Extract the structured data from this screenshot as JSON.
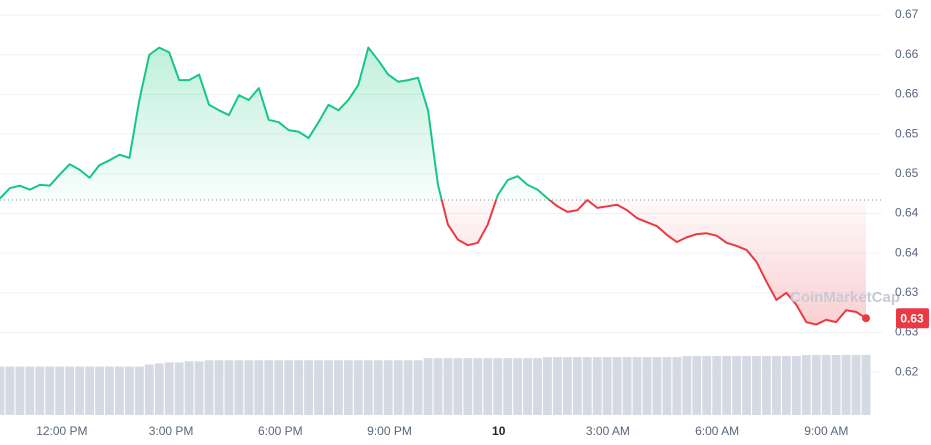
{
  "chart_data": {
    "type": "line",
    "x_axis_ticks_note_free": null,
    "xlim": [
      10.3,
      34.09
    ],
    "xticks": [
      {
        "value": 12,
        "label": "12:00 PM"
      },
      {
        "value": 15,
        "label": "3:00 PM"
      },
      {
        "value": 18,
        "label": "6:00 PM"
      },
      {
        "value": 21,
        "label": "9:00 PM"
      },
      {
        "value": 24,
        "label": "10"
      },
      {
        "value": 27,
        "label": "3:00 AM"
      },
      {
        "value": 30,
        "label": "6:00 AM"
      },
      {
        "value": 33,
        "label": "9:00 AM"
      }
    ],
    "ylim": [
      0.6196,
      0.6719
    ],
    "yticks": [
      0.67,
      {
        "value": 0.665,
        "label": "0.66"
      },
      {
        "value": 0.66,
        "label": "0.66"
      },
      {
        "value": 0.655,
        "label": "0.65"
      },
      {
        "value": 0.65,
        "label": "0.65"
      },
      {
        "value": 0.645,
        "label": "0.64"
      },
      {
        "value": 0.64,
        "label": "0.64"
      },
      {
        "value": 0.635,
        "label": "0.63"
      },
      {
        "value": 0.63,
        "label": "0.63"
      },
      {
        "value": 0.625,
        "label": "0.62"
      }
    ],
    "grid": true,
    "baseline": 0.6467,
    "up_color": "#16c784",
    "down_color": "#ea3943",
    "current_price_label": "0.63",
    "watermark": "CoinMarketCap",
    "series": [
      {
        "values": [
          0.6469,
          0.6482,
          0.6485,
          0.648,
          0.6486,
          0.6485,
          0.6499,
          0.6512,
          0.6505,
          0.6495,
          0.6511,
          0.6517,
          0.6524,
          0.652,
          0.6593,
          0.665,
          0.6659,
          0.6653,
          0.6618,
          0.6618,
          0.6625,
          0.6587,
          0.658,
          0.6574,
          0.6599,
          0.6593,
          0.6608,
          0.6568,
          0.6565,
          0.6555,
          0.6553,
          0.6545,
          0.6565,
          0.6587,
          0.658,
          0.6593,
          0.6612,
          0.6659,
          0.6643,
          0.6625,
          0.6616,
          0.6618,
          0.6621,
          0.658,
          0.6486,
          0.6436,
          0.6417,
          0.641,
          0.6413,
          0.6436,
          0.6473,
          0.6492,
          0.6497,
          0.6486,
          0.648,
          0.6469,
          0.6459,
          0.6452,
          0.6454,
          0.6467,
          0.6457,
          0.6459,
          0.6461,
          0.6454,
          0.6444,
          0.6439,
          0.6434,
          0.6423,
          0.6414,
          0.642,
          0.6424,
          0.6425,
          0.6422,
          0.6413,
          0.6409,
          0.6404,
          0.6389,
          0.6364,
          0.6341,
          0.635,
          0.6335,
          0.6313,
          0.631,
          0.6316,
          0.6313,
          0.6328,
          0.6326,
          0.6318
        ]
      },
      {
        "color": "#d4d9e3",
        "values": [
          46,
          46,
          46,
          46,
          46,
          46,
          46,
          46,
          46,
          46,
          46,
          46,
          46,
          46,
          46,
          48,
          49,
          50,
          50,
          51,
          51,
          52,
          52,
          52,
          52,
          52,
          52,
          52,
          52,
          52,
          52,
          52,
          52,
          52,
          52,
          52,
          52,
          52,
          52,
          52,
          52,
          52,
          52,
          54,
          54,
          54,
          54,
          54,
          54,
          54,
          54,
          54,
          54,
          54,
          54,
          55,
          55,
          55,
          55,
          55,
          55,
          55,
          55,
          55,
          55,
          55,
          55,
          55,
          55,
          56,
          56,
          56,
          56,
          56,
          56,
          56,
          56,
          56,
          56,
          56,
          56,
          57,
          57,
          57,
          57,
          57,
          57,
          57
        ]
      }
    ]
  }
}
